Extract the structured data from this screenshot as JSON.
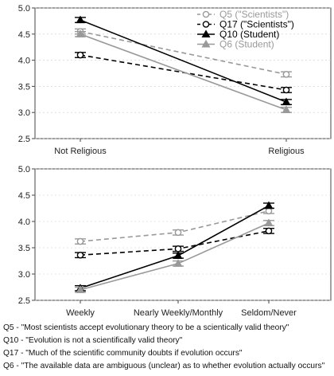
{
  "colors": {
    "black": "#000000",
    "gray": "#999999",
    "axis": "#444444",
    "grid": "#cccccc"
  },
  "chart_data": [
    {
      "type": "line",
      "categories": [
        "Not Religious",
        "Religious"
      ],
      "ylim": [
        2.5,
        5.0
      ],
      "yticks": [
        "2.5",
        "3.0",
        "3.5",
        "4.0",
        "4.5",
        "5.0"
      ],
      "legend_position": "top-right",
      "series": [
        {
          "name": "Q5 (\"Scientists\")",
          "values": [
            4.55,
            3.73
          ],
          "color": "#999999",
          "dashed": true,
          "marker": "open-circle"
        },
        {
          "name": "Q17 (\"Scientists\")",
          "values": [
            4.1,
            3.43
          ],
          "color": "#000000",
          "dashed": true,
          "marker": "open-circle"
        },
        {
          "name": "Q10 (Student)",
          "values": [
            4.77,
            3.2
          ],
          "color": "#000000",
          "dashed": false,
          "marker": "filled-triangle"
        },
        {
          "name": "Q6 (Student)",
          "values": [
            4.5,
            3.05
          ],
          "color": "#999999",
          "dashed": false,
          "marker": "filled-triangle"
        }
      ]
    },
    {
      "type": "line",
      "categories": [
        "Weekly",
        "Nearly Weekly/Monthly",
        "Seldom/Never"
      ],
      "ylim": [
        2.5,
        5.0
      ],
      "yticks": [
        "2.5",
        "3.0",
        "3.5",
        "4.0",
        "4.5",
        "5.0"
      ],
      "series": [
        {
          "values": [
            3.62,
            3.79,
            4.2
          ],
          "color": "#999999",
          "dashed": true,
          "marker": "open-circle"
        },
        {
          "values": [
            3.36,
            3.48,
            3.82
          ],
          "color": "#000000",
          "dashed": true,
          "marker": "open-circle"
        },
        {
          "values": [
            2.73,
            3.35,
            4.3
          ],
          "color": "#000000",
          "dashed": false,
          "marker": "filled-triangle"
        },
        {
          "values": [
            2.7,
            3.2,
            3.97
          ],
          "color": "#999999",
          "dashed": false,
          "marker": "filled-triangle"
        }
      ]
    }
  ],
  "footnotes": [
    "Q5 - \"Most scientists accept evolutionary theory to be a scientically valid theory\"",
    "Q10 - \"Evolution is not a scientifically valid theory\"",
    "Q17 - \"Much of the scientific community doubts if evolution occurs\"",
    "Q6 - \"The available data are ambiguous (unclear) as to whether evolution actually occurs\""
  ]
}
